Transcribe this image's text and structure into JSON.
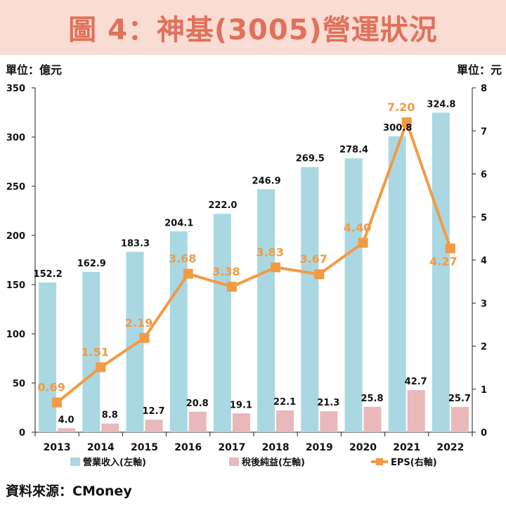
{
  "title": "圖 4：神基(3005)營運狀況",
  "unit_left": "單位：億元",
  "unit_right": "單位：元",
  "source": "資料來源：CMoney",
  "colors": {
    "revenue": "#a9d8e3",
    "net_income": "#e8b8ba",
    "eps": "#f39a45",
    "title_bg": "#f9dcd3",
    "title_text": "#e0715a"
  },
  "chart_data": {
    "type": "bar+line",
    "categories": [
      "2013",
      "2014",
      "2015",
      "2016",
      "2017",
      "2018",
      "2019",
      "2020",
      "2021",
      "2022"
    ],
    "series": [
      {
        "name": "營業收入(左軸)",
        "type": "bar",
        "axis": "left",
        "values": [
          152.2,
          162.9,
          183.3,
          204.1,
          222.0,
          246.9,
          269.5,
          278.4,
          300.8,
          324.8
        ]
      },
      {
        "name": "稅後純益(左軸)",
        "type": "bar",
        "axis": "left",
        "values": [
          4.0,
          8.8,
          12.7,
          20.8,
          19.1,
          22.1,
          21.3,
          25.8,
          42.7,
          25.7
        ]
      },
      {
        "name": "EPS(右軸)",
        "type": "line",
        "axis": "right",
        "values": [
          0.69,
          1.51,
          2.19,
          3.68,
          3.38,
          3.83,
          3.67,
          4.4,
          7.2,
          4.27
        ]
      }
    ],
    "left_axis": {
      "min": 0,
      "max": 350,
      "ticks": [
        0,
        50,
        100,
        150,
        200,
        250,
        300,
        350
      ]
    },
    "right_axis": {
      "min": 0,
      "max": 8,
      "ticks": [
        0,
        1,
        2,
        3,
        4,
        5,
        6,
        7,
        8
      ]
    },
    "legend_position": "bottom"
  }
}
